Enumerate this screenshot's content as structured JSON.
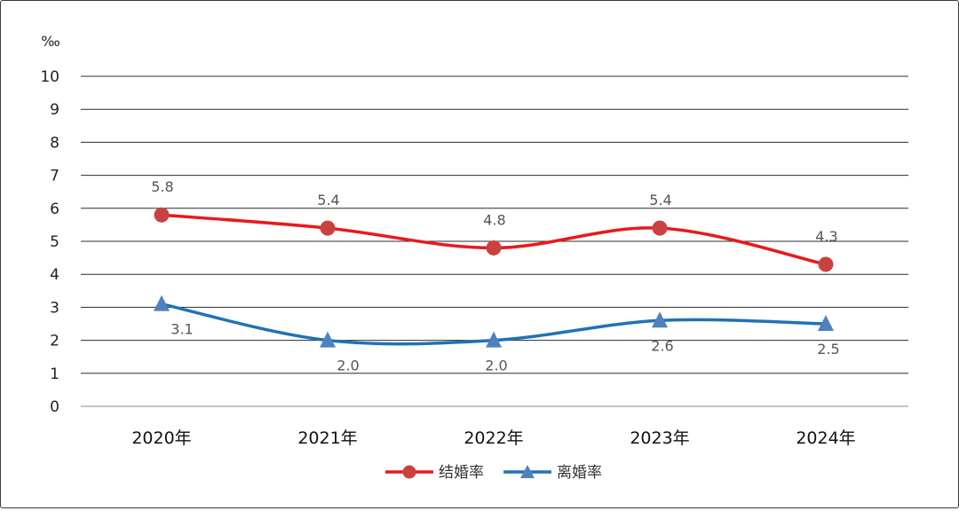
{
  "chart_data": {
    "type": "line",
    "unit": "‰",
    "categories": [
      "2020年",
      "2021年",
      "2022年",
      "2023年",
      "2024年"
    ],
    "yticks": [
      "0",
      "1",
      "2",
      "3",
      "4",
      "5",
      "6",
      "7",
      "8",
      "9",
      "10"
    ],
    "ylim": [
      0,
      10
    ],
    "grid": true,
    "legend_position": "bottom",
    "series": [
      {
        "name": "结婚率",
        "values": [
          5.8,
          5.4,
          4.8,
          5.4,
          4.3
        ],
        "labels": [
          "5.8",
          "5.4",
          "4.8",
          "5.4",
          "4.3"
        ],
        "color": "#e8191c",
        "marker_color": "#c9423f",
        "marker": "circle",
        "label_position": "above"
      },
      {
        "name": "离婚率",
        "values": [
          3.1,
          2.0,
          2.0,
          2.6,
          2.5
        ],
        "labels": [
          "3.1",
          "2.0",
          "2.0",
          "2.6",
          "2.5"
        ],
        "color": "#1f72b8",
        "marker_color": "#4f81bd",
        "marker": "triangle",
        "label_position": "below"
      }
    ]
  }
}
